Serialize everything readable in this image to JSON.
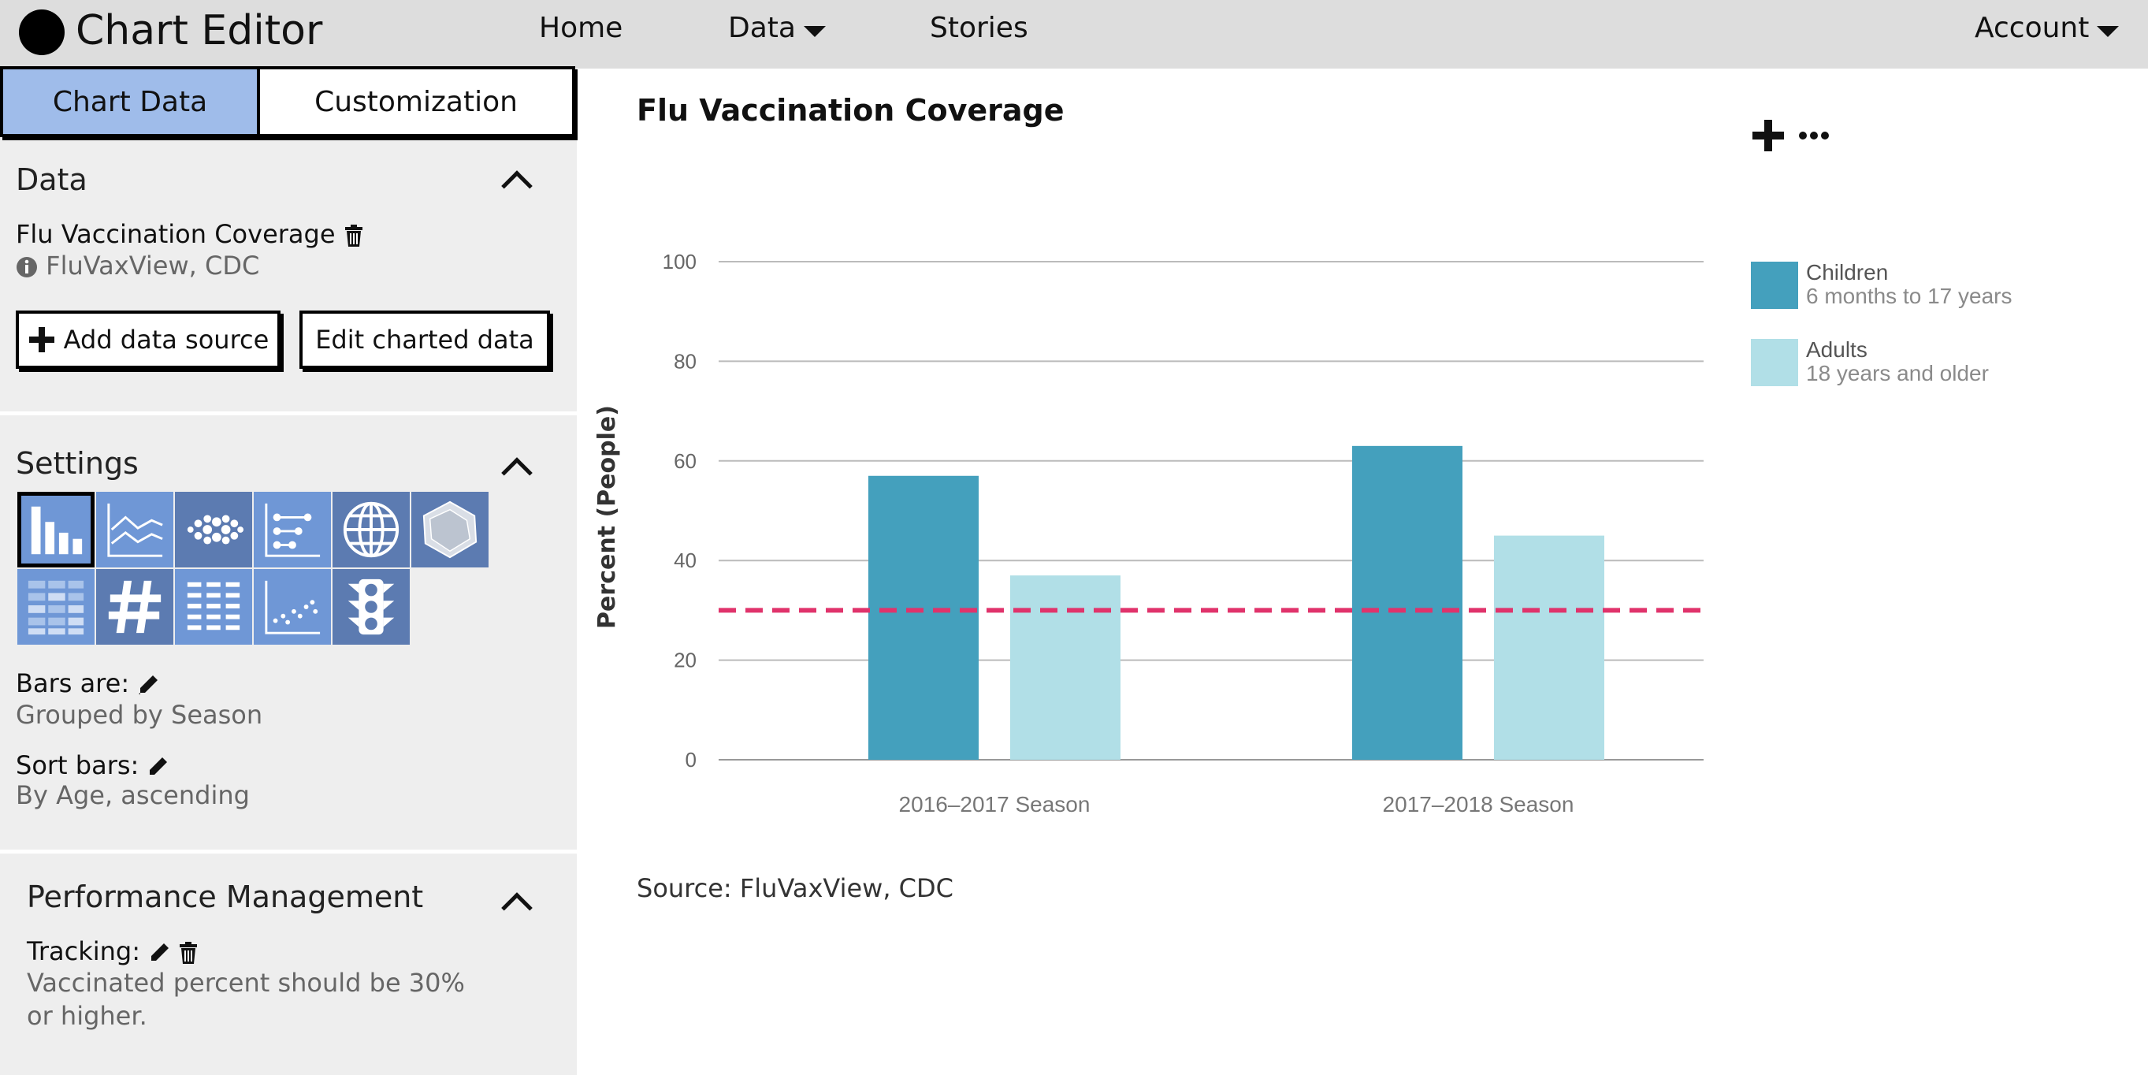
{
  "app": {
    "title": "Chart Editor"
  },
  "nav": {
    "home": "Home",
    "data": "Data",
    "stories": "Stories",
    "account": "Account"
  },
  "tabs": {
    "chart_data": "Chart Data",
    "customization": "Customization"
  },
  "data_section": {
    "title": "Data",
    "dataset_name": "Flu Vaccination Coverage",
    "dataset_source": "FluVaxView, CDC",
    "add_button": "Add data source",
    "edit_button": "Edit charted data"
  },
  "settings": {
    "title": "Settings",
    "chart_types": [
      "bar-chart-icon",
      "line-chart-icon",
      "bubble-chart-icon",
      "dot-plot-icon",
      "map-icon",
      "radar-chart-icon",
      "heatmap-icon",
      "number-icon",
      "table-icon",
      "scatter-plot-icon",
      "traffic-light-icon"
    ],
    "bars_are_label": "Bars are:",
    "bars_are_value": "Grouped by Season",
    "sort_bars_label": "Sort bars:",
    "sort_bars_value": "By Age, ascending"
  },
  "performance": {
    "title": "Performance Management",
    "tracking_label": "Tracking:",
    "tracking_line1": "Vaccinated percent should be 30%",
    "tracking_line2": "or higher."
  },
  "main": {
    "source": "Source: FluVaxView, CDC"
  },
  "colors": {
    "children": "#44a0bd",
    "adults": "#b1dfe7",
    "target_line": "#e0336b",
    "tab_active": "#9fbcea",
    "icon_tile": "#5c7bb1",
    "icon_tile_light": "#6f97d6"
  },
  "chart_data": {
    "type": "bar",
    "title": "Flu Vaccination Coverage",
    "ylabel": "Percent (People)",
    "xlabel": "",
    "categories": [
      "2016–2017 Season",
      "2017–2018 Season"
    ],
    "series": [
      {
        "name": "Children",
        "description": "6 months to 17 years",
        "values": [
          57,
          63
        ]
      },
      {
        "name": "Adults",
        "description": "18 years and older",
        "values": [
          37,
          45
        ]
      }
    ],
    "ylim": [
      0,
      100
    ],
    "yticks": [
      0,
      20,
      40,
      60,
      80,
      100
    ],
    "target_value": 30,
    "grid": true,
    "legend_position": "right"
  }
}
